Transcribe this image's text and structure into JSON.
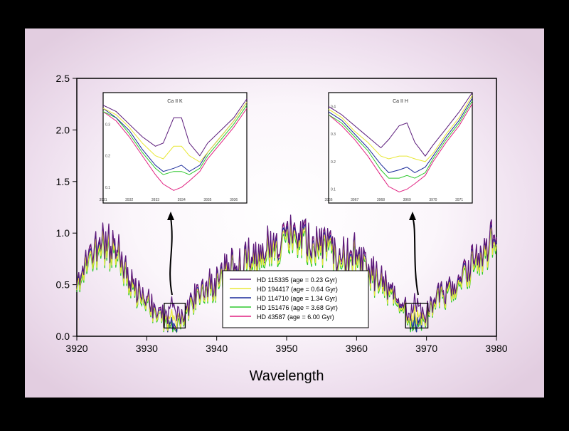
{
  "chart_data": {
    "type": "line",
    "xlabel": "Wavelength",
    "ylabel": "",
    "xlim": [
      3920,
      3980
    ],
    "ylim": [
      0,
      2.5
    ],
    "xticks": [
      "3920",
      "3930",
      "3940",
      "3950",
      "3960",
      "3970",
      "3980"
    ],
    "yticks": [
      "0.0",
      "0.5",
      "1.0",
      "1.5",
      "2.0",
      "2.5"
    ],
    "grid": false,
    "legend_position": "bottom-center",
    "colors": {
      "background_outer": "#e9dbe9",
      "background_inner": "#fbf8fb",
      "frame": "#000000"
    },
    "legend": [
      {
        "label": "HD 115335 (age = 0.23 Gyr)",
        "color": "#5a1a7a"
      },
      {
        "label": "HD 194417 (age = 0.64 Gyr)",
        "color": "#e8e838"
      },
      {
        "label": "HD 114710 (age = 1.34 Gyr)",
        "color": "#1a2a9a"
      },
      {
        "label": "HD 151476 (age = 3.68 Gyr)",
        "color": "#2ec82e"
      },
      {
        "label": "HD 43587 (age = 6.00 Gyr)",
        "color": "#e02080"
      }
    ],
    "series_shape": {
      "x": [
        3920,
        3922,
        3923,
        3924,
        3925,
        3926,
        3927,
        3928,
        3929,
        3930,
        3931,
        3932,
        3933,
        3934,
        3935,
        3936,
        3937,
        3938,
        3940,
        3942,
        3944,
        3946,
        3948,
        3949,
        3950,
        3952,
        3954,
        3956,
        3958,
        3960,
        3961,
        3962,
        3963,
        3964,
        3965,
        3966,
        3967,
        3968,
        3969,
        3970,
        3971,
        3972,
        3973,
        3974,
        3975,
        3976,
        3978,
        3980
      ],
      "y": [
        0.6,
        0.75,
        0.82,
        0.9,
        0.88,
        0.78,
        0.6,
        0.5,
        0.42,
        0.3,
        0.25,
        0.2,
        0.15,
        0.12,
        0.18,
        0.3,
        0.38,
        0.45,
        0.55,
        0.65,
        0.72,
        0.8,
        0.85,
        0.9,
        1.0,
        0.95,
        0.9,
        0.85,
        0.8,
        0.75,
        0.7,
        0.6,
        0.52,
        0.48,
        0.42,
        0.3,
        0.25,
        0.15,
        0.12,
        0.2,
        0.3,
        0.38,
        0.42,
        0.5,
        0.55,
        0.65,
        0.8,
        1.0
      ],
      "offsets": [
        0.03,
        -0.02,
        0.0,
        -0.04,
        0.02
      ],
      "dip_boost": [
        0.2,
        0.1,
        0.0,
        -0.02,
        -0.05
      ]
    },
    "insets": [
      {
        "title": "Ca II K",
        "xticks": [
          "3931",
          "3932",
          "3933",
          "3934",
          "3935",
          "3936"
        ],
        "yticks": [
          "0.1",
          "0.2",
          "0.3"
        ],
        "xlim": [
          3931,
          3936.5
        ],
        "ylim": [
          0.05,
          0.4
        ],
        "x": [
          3931,
          3931.5,
          3932,
          3932.5,
          3933,
          3933.3,
          3933.7,
          3934,
          3934.3,
          3934.7,
          3935,
          3935.5,
          3936,
          3936.5
        ],
        "series": [
          {
            "name": "HD 115335",
            "y": [
              0.36,
              0.34,
              0.3,
              0.26,
              0.23,
              0.24,
              0.32,
              0.32,
              0.24,
              0.2,
              0.24,
              0.28,
              0.32,
              0.38
            ]
          },
          {
            "name": "HD 194417",
            "y": [
              0.35,
              0.33,
              0.29,
              0.24,
              0.2,
              0.19,
              0.23,
              0.23,
              0.2,
              0.18,
              0.21,
              0.26,
              0.31,
              0.37
            ]
          },
          {
            "name": "HD 114710",
            "y": [
              0.35,
              0.32,
              0.28,
              0.22,
              0.17,
              0.15,
              0.16,
              0.17,
              0.15,
              0.17,
              0.21,
              0.26,
              0.31,
              0.37
            ]
          },
          {
            "name": "HD 151476",
            "y": [
              0.34,
              0.32,
              0.27,
              0.21,
              0.16,
              0.14,
              0.15,
              0.15,
              0.14,
              0.16,
              0.2,
              0.25,
              0.3,
              0.36
            ]
          },
          {
            "name": "HD 43587",
            "y": [
              0.34,
              0.31,
              0.26,
              0.2,
              0.14,
              0.11,
              0.09,
              0.1,
              0.12,
              0.15,
              0.19,
              0.24,
              0.29,
              0.35
            ]
          }
        ]
      },
      {
        "title": "Ca II H",
        "xticks": [
          "3966",
          "3967",
          "3968",
          "3969",
          "3970",
          "3971"
        ],
        "yticks": [
          "0.1",
          "0.2",
          "0.3",
          "0.4"
        ],
        "xlim": [
          3966,
          3971.5
        ],
        "ylim": [
          0.05,
          0.45
        ],
        "x": [
          3966,
          3966.5,
          3967,
          3967.5,
          3968,
          3968.3,
          3968.7,
          3969,
          3969.3,
          3969.7,
          3970,
          3970.5,
          3971,
          3971.5
        ],
        "series": [
          {
            "name": "HD 115335",
            "y": [
              0.4,
              0.37,
              0.33,
              0.29,
              0.25,
              0.28,
              0.33,
              0.34,
              0.27,
              0.22,
              0.26,
              0.32,
              0.38,
              0.45
            ]
          },
          {
            "name": "HD 194417",
            "y": [
              0.39,
              0.36,
              0.31,
              0.27,
              0.22,
              0.21,
              0.22,
              0.22,
              0.21,
              0.2,
              0.23,
              0.3,
              0.36,
              0.44
            ]
          },
          {
            "name": "HD 114710",
            "y": [
              0.38,
              0.35,
              0.3,
              0.25,
              0.19,
              0.16,
              0.17,
              0.18,
              0.16,
              0.18,
              0.22,
              0.29,
              0.35,
              0.43
            ]
          },
          {
            "name": "HD 151476",
            "y": [
              0.37,
              0.34,
              0.29,
              0.24,
              0.17,
              0.14,
              0.14,
              0.15,
              0.14,
              0.16,
              0.21,
              0.28,
              0.34,
              0.42
            ]
          },
          {
            "name": "HD 43587",
            "y": [
              0.37,
              0.33,
              0.28,
              0.22,
              0.15,
              0.11,
              0.09,
              0.1,
              0.12,
              0.15,
              0.2,
              0.27,
              0.33,
              0.41
            ]
          }
        ]
      }
    ]
  }
}
